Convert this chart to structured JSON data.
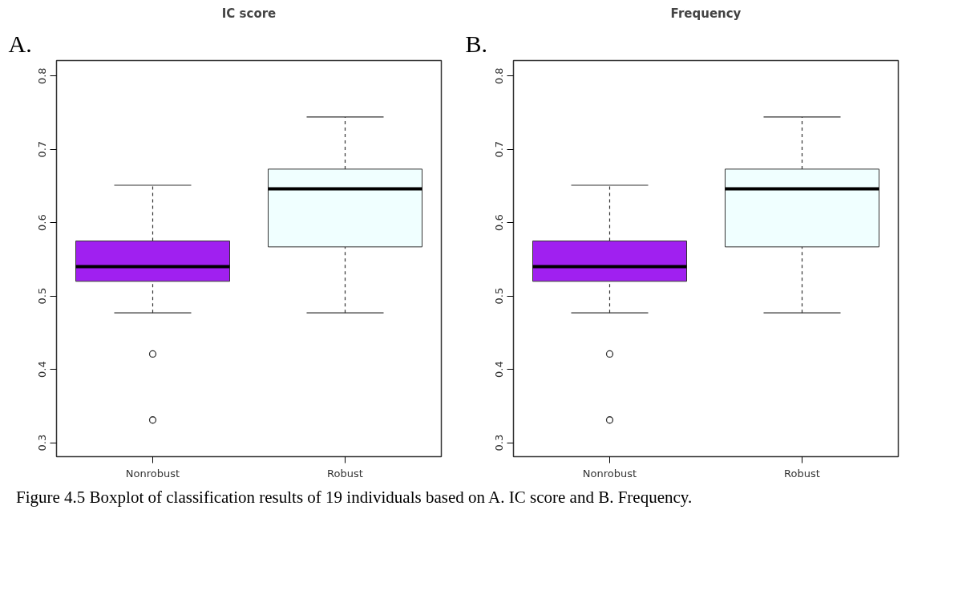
{
  "chart_data": [
    {
      "type": "box",
      "title": "IC score",
      "annotations": [
        "A."
      ],
      "categories": [
        "Nonrobust",
        "Robust"
      ],
      "colors": [
        "#a020f0",
        "#f0ffff"
      ],
      "boxes": [
        {
          "low": 0.477,
          "q1": 0.52,
          "median": 0.54,
          "q3": 0.575,
          "high": 0.651,
          "outliers": [
            0.421,
            0.331
          ]
        },
        {
          "low": 0.477,
          "q1": 0.567,
          "median": 0.646,
          "q3": 0.673,
          "high": 0.744
        }
      ],
      "ylim": [
        0.281,
        0.821
      ],
      "yticks": [
        0.3,
        0.4,
        0.5,
        0.6,
        0.7,
        0.8
      ]
    },
    {
      "type": "box",
      "title": "Frequency",
      "annotations": [
        "B."
      ],
      "categories": [
        "Nonrobust",
        "Robust"
      ],
      "colors": [
        "#a020f0",
        "#f0ffff"
      ],
      "boxes": [
        {
          "low": 0.477,
          "q1": 0.52,
          "median": 0.54,
          "q3": 0.575,
          "high": 0.651,
          "outliers": [
            0.421,
            0.331
          ]
        },
        {
          "low": 0.477,
          "q1": 0.567,
          "median": 0.646,
          "q3": 0.673,
          "high": 0.744
        }
      ],
      "ylim": [
        0.281,
        0.821
      ],
      "yticks": [
        0.3,
        0.4,
        0.5,
        0.6,
        0.7,
        0.8
      ]
    },
    {
      "type": "other",
      "annotations": [
        "Figure 4.5 Boxplot of classification results of 19 individuals based on A. IC score and B. Frequency."
      ]
    }
  ]
}
